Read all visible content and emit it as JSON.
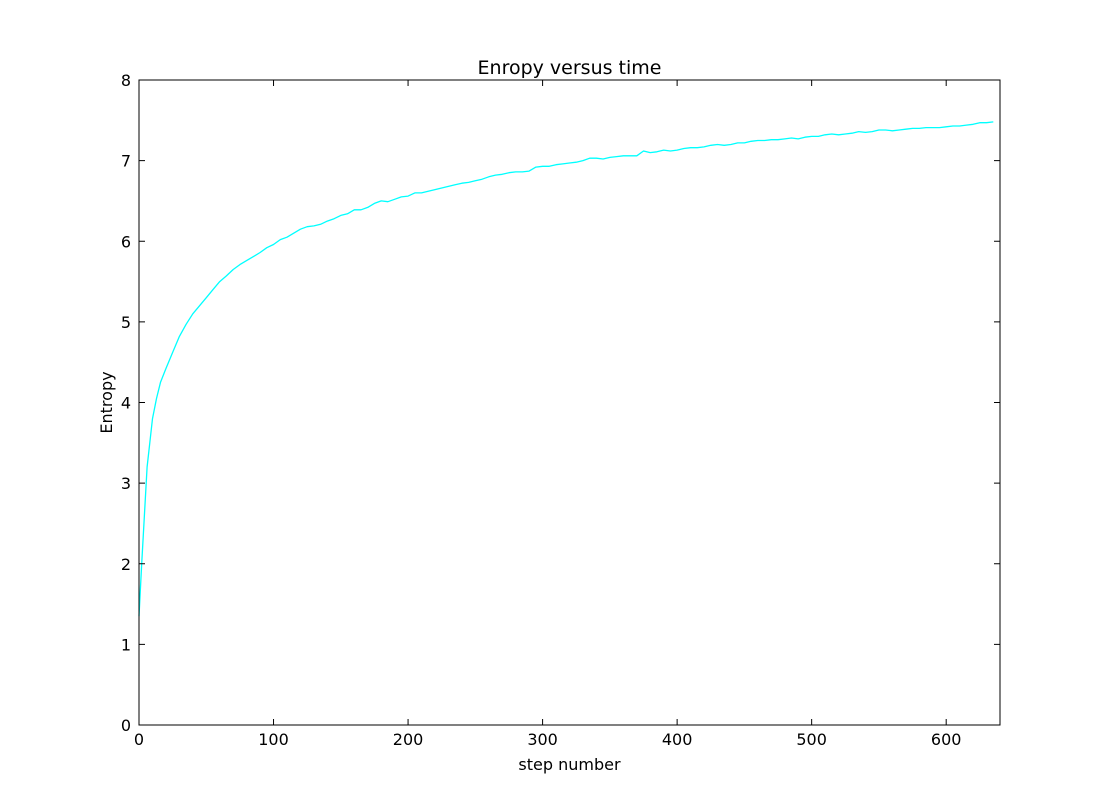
{
  "chart_data": {
    "type": "line",
    "title": "Enropy versus time",
    "xlabel": "step number",
    "ylabel": "Entropy",
    "xlim": [
      0,
      640
    ],
    "ylim": [
      0,
      8
    ],
    "xticks": [
      "0",
      "100",
      "200",
      "300",
      "400",
      "500",
      "600"
    ],
    "yticks": [
      "0",
      "1",
      "2",
      "3",
      "4",
      "5",
      "6",
      "7",
      "8"
    ],
    "grid": false,
    "line_color": "#00ffff",
    "series": [
      {
        "x": [
          0,
          2,
          4,
          6,
          8,
          10,
          13,
          16,
          20,
          25,
          30,
          35,
          40,
          45,
          50,
          55,
          60,
          65,
          70,
          75,
          80,
          85,
          90,
          95,
          100,
          105,
          110,
          115,
          120,
          125,
          130,
          135,
          140,
          145,
          150,
          155,
          160,
          165,
          170,
          175,
          180,
          185,
          190,
          195,
          200,
          205,
          210,
          215,
          220,
          225,
          230,
          235,
          240,
          245,
          250,
          255,
          260,
          265,
          270,
          275,
          280,
          285,
          290,
          295,
          300,
          305,
          310,
          315,
          320,
          325,
          330,
          335,
          340,
          345,
          350,
          355,
          360,
          365,
          370,
          375,
          380,
          385,
          390,
          395,
          400,
          405,
          410,
          415,
          420,
          425,
          430,
          435,
          440,
          445,
          450,
          455,
          460,
          465,
          470,
          475,
          480,
          485,
          490,
          495,
          500,
          505,
          510,
          515,
          520,
          525,
          530,
          535,
          540,
          545,
          550,
          555,
          560,
          565,
          570,
          575,
          580,
          585,
          590,
          595,
          600,
          605,
          610,
          615,
          620,
          625,
          630,
          635
        ],
        "y": [
          1.35,
          2.0,
          2.6,
          3.2,
          3.5,
          3.8,
          4.05,
          4.25,
          4.42,
          4.62,
          4.82,
          4.97,
          5.1,
          5.2,
          5.3,
          5.4,
          5.5,
          5.57,
          5.65,
          5.71,
          5.76,
          5.81,
          5.86,
          5.92,
          5.96,
          6.02,
          6.05,
          6.1,
          6.15,
          6.18,
          6.19,
          6.21,
          6.25,
          6.28,
          6.32,
          6.34,
          6.39,
          6.39,
          6.42,
          6.47,
          6.5,
          6.49,
          6.52,
          6.55,
          6.56,
          6.6,
          6.6,
          6.62,
          6.64,
          6.66,
          6.68,
          6.7,
          6.72,
          6.73,
          6.75,
          6.77,
          6.8,
          6.82,
          6.83,
          6.85,
          6.86,
          6.86,
          6.87,
          6.92,
          6.93,
          6.93,
          6.95,
          6.96,
          6.97,
          6.98,
          7.0,
          7.03,
          7.03,
          7.02,
          7.04,
          7.05,
          7.06,
          7.06,
          7.06,
          7.12,
          7.1,
          7.11,
          7.13,
          7.12,
          7.13,
          7.15,
          7.16,
          7.16,
          7.17,
          7.19,
          7.2,
          7.19,
          7.2,
          7.22,
          7.22,
          7.24,
          7.25,
          7.25,
          7.26,
          7.26,
          7.27,
          7.28,
          7.27,
          7.29,
          7.3,
          7.3,
          7.32,
          7.33,
          7.32,
          7.33,
          7.34,
          7.36,
          7.35,
          7.36,
          7.38,
          7.38,
          7.37,
          7.38,
          7.39,
          7.4,
          7.4,
          7.41,
          7.41,
          7.41,
          7.42,
          7.43,
          7.43,
          7.44,
          7.45,
          7.47,
          7.47,
          7.48
        ]
      }
    ]
  }
}
